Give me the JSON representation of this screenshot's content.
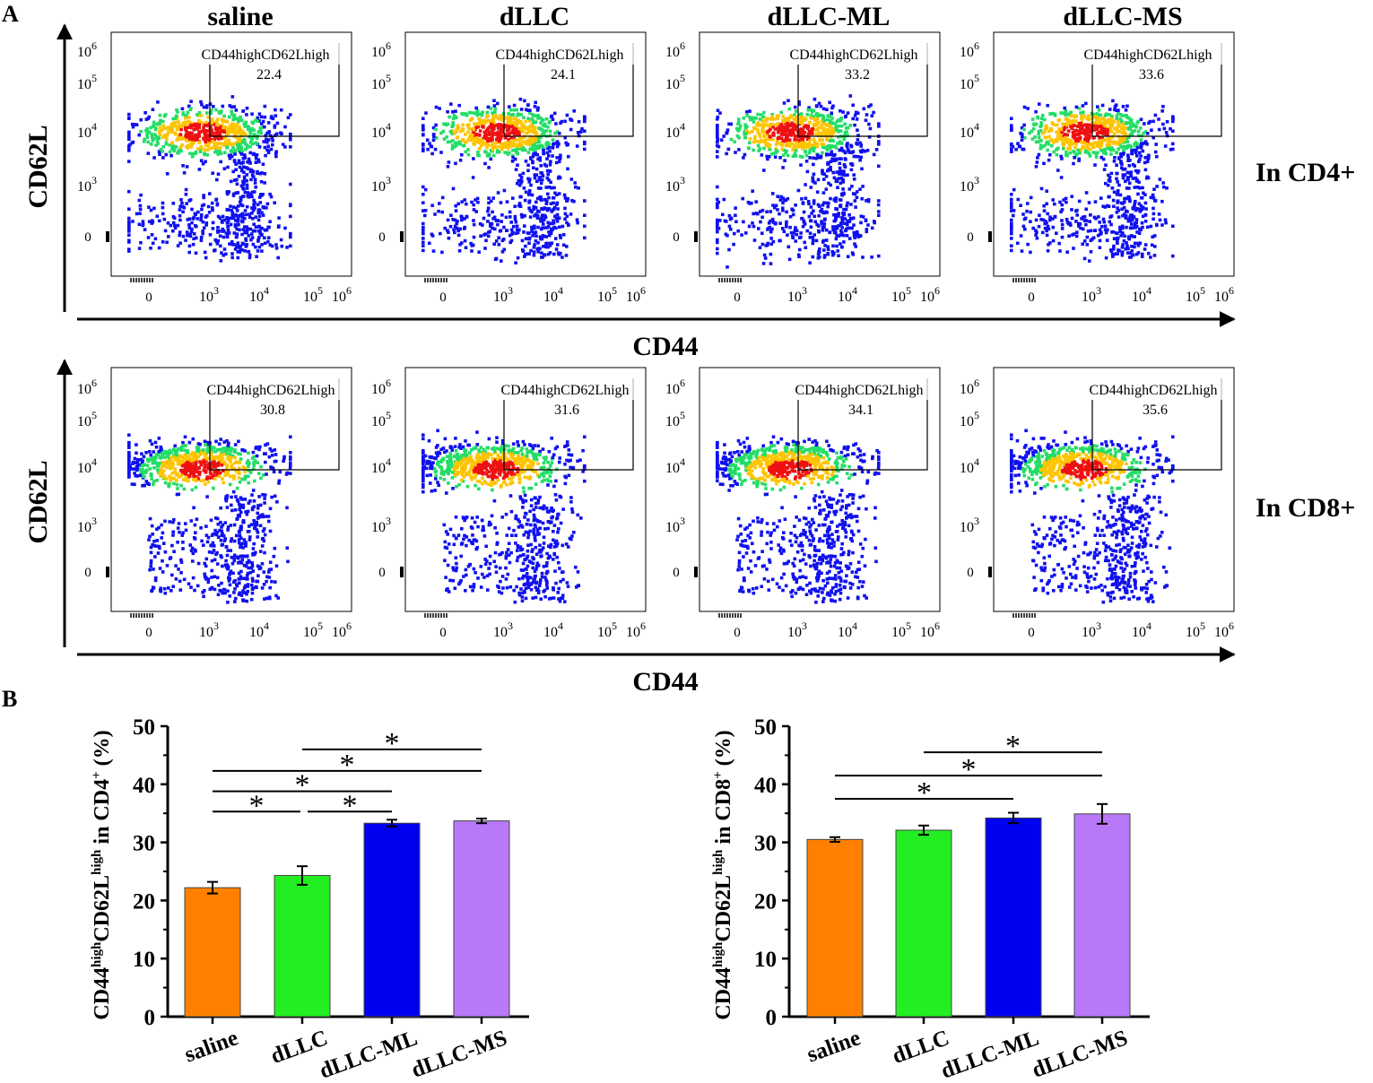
{
  "figure": {
    "panel_a_label": "A",
    "panel_b_label": "B",
    "gate_name": "CD44highCD62Lhigh",
    "flow_x_label": "CD44",
    "flow_y_label": "CD62L",
    "decade_base": "10",
    "zero_label": "0",
    "star": "*",
    "y_label_parts": {
      "cd44": "CD44",
      "high": "high",
      "cd62l": "CD62L",
      "in": "in ",
      "cd4": "CD4",
      "cd8": "CD8",
      "plus": "+",
      "pct": " (%)"
    },
    "colors": {
      "saline": "#ff8000",
      "dLLC": "#22ee22",
      "dLLC-ML": "#0000f0",
      "dLLC-MS": "#b878f8",
      "density_low": "#1010ee",
      "density_mid": "#22dd66",
      "density_high": "#ee1111"
    }
  },
  "flow_panels": {
    "columns": [
      "saline",
      "dLLC",
      "dLLC-ML",
      "dLLC-MS"
    ],
    "rows": [
      {
        "label": "In CD4+",
        "gate_values": [
          "22.4",
          "24.1",
          "33.2",
          "33.6"
        ]
      },
      {
        "label": "In CD8+",
        "gate_values": [
          "30.8",
          "31.6",
          "34.1",
          "35.6"
        ]
      }
    ],
    "x_ticks": [
      {
        "base": "",
        "exp": "",
        "plain": "0"
      },
      {
        "base": "10",
        "exp": "3"
      },
      {
        "base": "10",
        "exp": "4"
      },
      {
        "base": "10",
        "exp": "5"
      },
      {
        "base": "10",
        "exp": "6"
      }
    ],
    "y_ticks": [
      {
        "plain": "0"
      },
      {
        "base": "10",
        "exp": "3"
      },
      {
        "base": "10",
        "exp": "4"
      },
      {
        "base": "10",
        "exp": "5"
      },
      {
        "base": "10",
        "exp": "6"
      }
    ]
  },
  "chart_data": [
    {
      "type": "bar",
      "panel": "B-left",
      "title": "",
      "xlabel": "",
      "ylabel": "CD44highCD62Lhigh in CD4+ (%)",
      "categories": [
        "saline",
        "dLLC",
        "dLLC-ML",
        "dLLC-MS"
      ],
      "values": [
        22.2,
        24.3,
        33.3,
        33.7
      ],
      "errors": [
        1.0,
        1.6,
        0.6,
        0.4
      ],
      "ylim": [
        0,
        50
      ],
      "yticks": [
        0,
        10,
        20,
        30,
        40,
        50
      ],
      "significance": [
        {
          "from": "saline",
          "to": "dLLC",
          "label": "*",
          "level": 35.3
        },
        {
          "from": "dLLC",
          "to": "dLLC-ML",
          "label": "*",
          "level": 35.3
        },
        {
          "from": "saline",
          "to": "dLLC-ML",
          "label": "*",
          "level": 38.8
        },
        {
          "from": "saline",
          "to": "dLLC-MS",
          "label": "*",
          "level": 42.3
        },
        {
          "from": "dLLC",
          "to": "dLLC-MS",
          "label": "*",
          "level": 46.0
        }
      ]
    },
    {
      "type": "bar",
      "panel": "B-right",
      "title": "",
      "xlabel": "",
      "ylabel": "CD44highCD62Lhigh in CD8+ (%)",
      "categories": [
        "saline",
        "dLLC",
        "dLLC-ML",
        "dLLC-MS"
      ],
      "values": [
        30.5,
        32.1,
        34.2,
        34.9
      ],
      "errors": [
        0.4,
        0.8,
        0.9,
        1.7
      ],
      "ylim": [
        0,
        50
      ],
      "yticks": [
        0,
        10,
        20,
        30,
        40,
        50
      ],
      "significance": [
        {
          "from": "saline",
          "to": "dLLC-ML",
          "label": "*",
          "level": 37.5
        },
        {
          "from": "saline",
          "to": "dLLC-MS",
          "label": "*",
          "level": 41.5
        },
        {
          "from": "dLLC",
          "to": "dLLC-MS",
          "label": "*",
          "level": 45.5
        }
      ]
    }
  ]
}
